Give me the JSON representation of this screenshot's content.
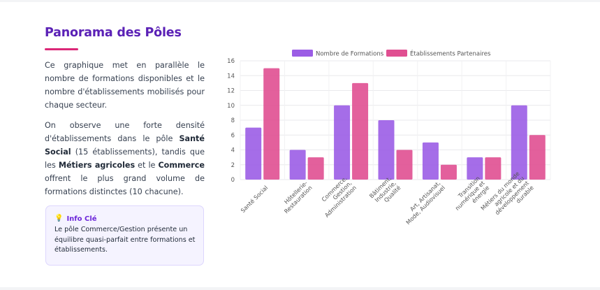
{
  "section": {
    "title": "Panorama des Pôles",
    "paragraph1": "Ce graphique met en parallèle le nombre de formations disponibles et le nombre d'établissements mobilisés pour chaque secteur.",
    "p2_a": "On observe une forte densité d'établissements dans le pôle ",
    "p2_b": "Santé Social",
    "p2_c": " (15 établissements), tandis que les ",
    "p2_d": "Métiers agricoles",
    "p2_e": " et le ",
    "p2_f": "Commerce",
    "p2_g": " offrent le plus grand volume de formations distinctes (10 chacune)."
  },
  "info": {
    "icon": "lightbulb-icon",
    "title": "Info Clé",
    "text": "Le pôle Commerce/Gestion présente un équilibre quasi-parfait entre formations et établissements."
  },
  "colors": {
    "formations": "#9b5de5",
    "etablissements": "#e04f91"
  },
  "chart_data": {
    "type": "bar",
    "categories": [
      [
        "Santé Social"
      ],
      [
        "Hôtellerie-",
        "Restauration"
      ],
      [
        "Commerce,",
        "Gestion,",
        "Administration"
      ],
      [
        "Bâtiment,",
        "Industrie,",
        "Qualité"
      ],
      [
        "Art, Artisanat,",
        "Mode, Audiovisuel"
      ],
      [
        "Transition",
        "numérique et",
        "énergie"
      ],
      [
        "Métiers du monde",
        "agricole et du",
        "développement",
        "durable"
      ]
    ],
    "series": [
      {
        "name": "Nombre de Formations",
        "values": [
          7,
          4,
          10,
          8,
          5,
          3,
          10
        ]
      },
      {
        "name": "Établissements Partenaires",
        "values": [
          15,
          3,
          13,
          4,
          2,
          3,
          6
        ]
      }
    ],
    "ylim": [
      0,
      16
    ],
    "yticks": [
      0,
      2,
      4,
      6,
      8,
      10,
      12,
      14,
      16
    ],
    "legend": "top",
    "grid": true
  }
}
